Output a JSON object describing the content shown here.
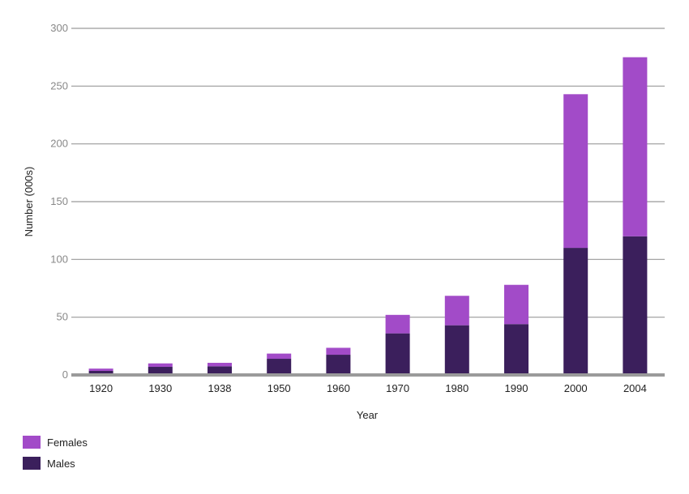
{
  "chart_data": {
    "type": "bar",
    "stacked": true,
    "categories": [
      "1920",
      "1930",
      "1938",
      "1950",
      "1960",
      "1970",
      "1980",
      "1990",
      "2000",
      "2004"
    ],
    "series": [
      {
        "name": "Males",
        "color": "#3b1f5c",
        "values": [
          3.5,
          7,
          7.5,
          14,
          17.5,
          36,
          43,
          44,
          110,
          120
        ]
      },
      {
        "name": "Females",
        "color": "#a24bc8",
        "values": [
          2,
          3,
          3,
          4.5,
          6,
          16,
          25.5,
          34,
          133,
          155
        ]
      }
    ],
    "xlabel": "Year",
    "ylabel": "Number (000s)",
    "ylim": [
      0,
      300
    ],
    "yticks": [
      0,
      50,
      100,
      150,
      200,
      250,
      300
    ],
    "grid": true,
    "legend_position": "bottom-left",
    "legend": [
      {
        "label": "Females",
        "color": "#a24bc8"
      },
      {
        "label": "Males",
        "color": "#3b1f5c"
      }
    ]
  }
}
